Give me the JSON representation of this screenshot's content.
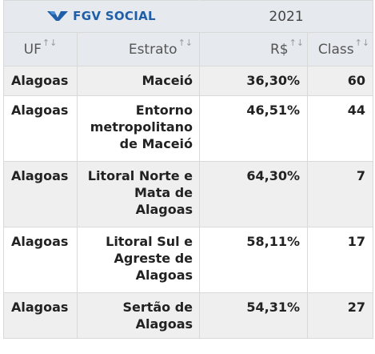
{
  "header": {
    "brand": "FGV SOCIAL",
    "year": "2021",
    "columns": [
      {
        "label": "UF"
      },
      {
        "label": "Estrato"
      },
      {
        "label": "R$"
      },
      {
        "label": "Class"
      }
    ]
  },
  "rows": [
    {
      "uf": "Alagoas",
      "estrato": "Maceió",
      "value": "36,30%",
      "class": "60"
    },
    {
      "uf": "Alagoas",
      "estrato": "Entorno metropolitano de Maceió",
      "value": "46,51%",
      "class": "44"
    },
    {
      "uf": "Alagoas",
      "estrato": "Litoral Norte e Mata de Alagoas",
      "value": "64,30%",
      "class": "7"
    },
    {
      "uf": "Alagoas",
      "estrato": "Litoral Sul e Agreste de Alagoas",
      "value": "58,11%",
      "class": "17"
    },
    {
      "uf": "Alagoas",
      "estrato": "Sertão de Alagoas",
      "value": "54,31%",
      "class": "27"
    }
  ],
  "icons": {
    "logo": "fgv-logo-icon",
    "sort": "sort-arrows-icon"
  },
  "colors": {
    "brand": "#1f5fa8",
    "header_bg": "#e6eaee",
    "stripe": "#efefef",
    "border": "#d9d9d9"
  }
}
